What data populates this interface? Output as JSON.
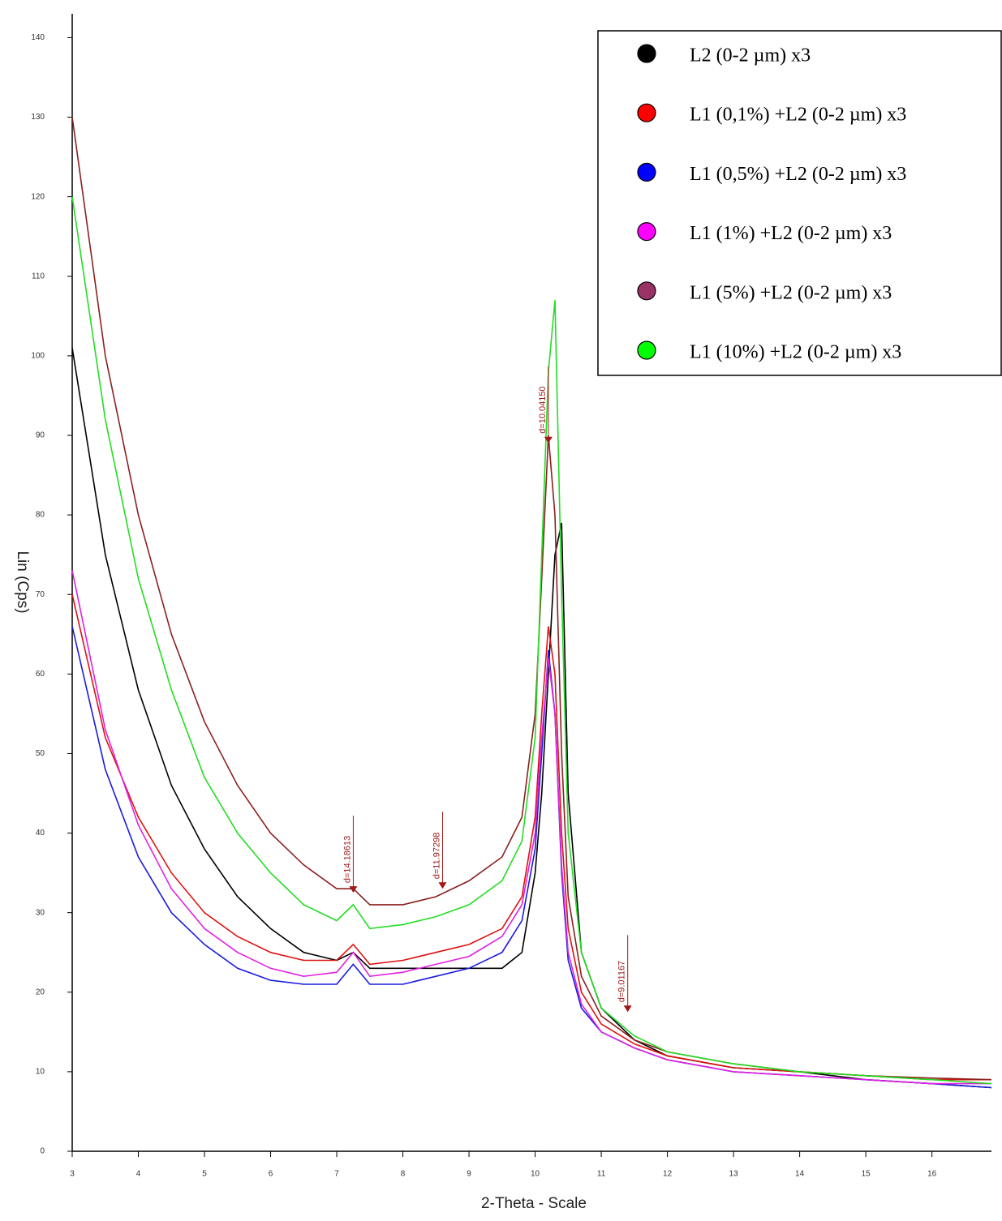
{
  "chart_data": {
    "type": "line",
    "x_label": "2-Theta - Scale",
    "y_label": "Lin (Cps)",
    "xlim": [
      3,
      16.9
    ],
    "xticks": [
      3,
      4,
      5,
      6,
      7,
      8,
      9,
      10,
      11,
      12,
      13,
      14,
      15,
      16
    ],
    "ylim": [
      0,
      143
    ],
    "yticks": [
      0,
      10,
      20,
      30,
      40,
      50,
      60,
      70,
      80,
      90,
      100,
      110,
      120,
      130,
      140
    ],
    "legend": "top-right",
    "x": [
      3,
      3.5,
      4,
      4.5,
      5,
      5.5,
      6,
      6.5,
      7,
      7.25,
      7.5,
      8,
      8.5,
      9,
      9.5,
      9.8,
      10,
      10.1,
      10.2,
      10.3,
      10.4,
      10.5,
      10.7,
      11,
      11.5,
      12,
      13,
      14,
      15,
      16,
      16.9
    ],
    "series": [
      {
        "name": "L2 (0-2 µm) x3",
        "color": "#000000",
        "values": [
          101,
          75,
          58,
          46,
          38,
          32,
          28,
          25,
          24,
          25,
          23,
          23,
          23,
          23,
          23,
          25,
          35,
          45,
          60,
          75,
          79,
          45,
          25,
          18,
          14,
          12,
          10.5,
          10,
          9,
          8.5,
          8
        ]
      },
      {
        "name": "L1 (0,1%) +L2 (0-2 µm) x3",
        "color": "#e01010",
        "values": [
          70,
          52,
          42,
          35,
          30,
          27,
          25,
          24,
          24,
          26,
          23.5,
          24,
          25,
          26,
          28,
          32,
          42,
          55,
          66,
          60,
          40,
          28,
          20,
          16,
          13.5,
          12,
          10.5,
          10,
          9.5,
          9,
          9
        ]
      },
      {
        "name": "L1 (0,5%) +L2 (0-2 µm) x3",
        "color": "#1a1ae0",
        "values": [
          66,
          48,
          37,
          30,
          26,
          23,
          21.5,
          21,
          21,
          23.5,
          21,
          21,
          22,
          23,
          25,
          29,
          38,
          50,
          63,
          55,
          35,
          24,
          18,
          15,
          13,
          11.5,
          10,
          9.5,
          9,
          8.5,
          8
        ]
      },
      {
        "name": "L1 (1%) +L2 (0-2 µm) x3",
        "color": "#e020e0",
        "values": [
          73,
          53,
          41,
          33,
          28,
          25,
          23,
          22,
          22.5,
          25,
          22,
          22.5,
          23.5,
          24.5,
          27,
          31,
          40,
          52,
          62,
          55,
          36,
          25,
          18.5,
          15,
          13,
          11.5,
          10,
          9.5,
          9,
          8.5,
          8.5
        ]
      },
      {
        "name": "L1 (5%) +L2 (0-2 µm) x3",
        "color": "#8b2020",
        "values": [
          130,
          100,
          80,
          65,
          54,
          46,
          40,
          36,
          33,
          33,
          31,
          31,
          32,
          34,
          37,
          42,
          55,
          72,
          90,
          80,
          50,
          32,
          22,
          17,
          14,
          12.5,
          11,
          10,
          9.5,
          9.2,
          9
        ]
      },
      {
        "name": "L1 (10%) +L2 (0-2 µm) x3",
        "color": "#22dd22",
        "values": [
          120,
          92,
          72,
          58,
          47,
          40,
          35,
          31,
          29,
          31,
          28,
          28.5,
          29.5,
          31,
          34,
          39,
          52,
          75,
          98,
          107,
          70,
          40,
          25,
          18,
          14.5,
          12.5,
          11,
          10,
          9.5,
          9,
          8.5
        ]
      }
    ],
    "legend_markers": [
      "#000000",
      "#ff0000",
      "#0000ff",
      "#ff00ff",
      "#993366",
      "#00ff00"
    ],
    "annotations": [
      {
        "label": "d=14.18613",
        "x": 7.25,
        "y": 32.5
      },
      {
        "label": "d=11.97298",
        "x": 8.6,
        "y": 33
      },
      {
        "label": "d=10.04150",
        "x": 10.2,
        "y": 89
      },
      {
        "label": "d=9.01167",
        "x": 11.4,
        "y": 17.5
      }
    ]
  }
}
